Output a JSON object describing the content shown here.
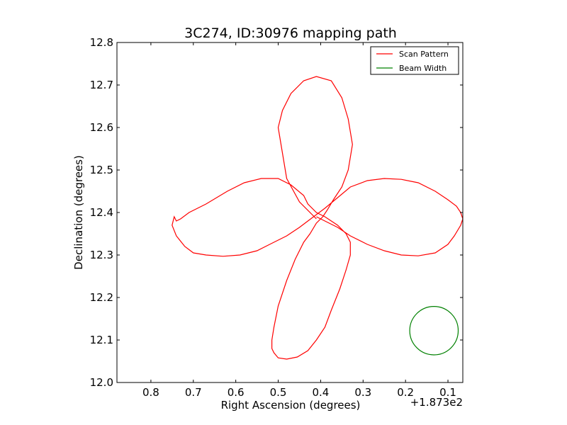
{
  "chart_data": {
    "type": "line",
    "title": "3C274, ID:30976 mapping path",
    "xlabel": "Right Ascension (degrees)",
    "ylabel": "Declination (degrees)",
    "x_offset_label": "+1.873e2",
    "x_axis_inverted": true,
    "xlim": [
      0.88,
      0.065
    ],
    "ylim": [
      12.0,
      12.8
    ],
    "x_ticks": [
      0.8,
      0.7,
      0.6,
      0.5,
      0.4,
      0.3,
      0.2,
      0.1
    ],
    "x_tick_labels": [
      "0.8",
      "0.7",
      "0.6",
      "0.5",
      "0.4",
      "0.3",
      "0.2",
      "0.1"
    ],
    "y_ticks": [
      12.0,
      12.1,
      12.2,
      12.3,
      12.4,
      12.5,
      12.6,
      12.7,
      12.8
    ],
    "y_tick_labels": [
      "12.0",
      "12.1",
      "12.2",
      "12.3",
      "12.4",
      "12.5",
      "12.6",
      "12.7",
      "12.8"
    ],
    "legend_placement": "top-right",
    "series": [
      {
        "name": "Scan Pattern",
        "color": "#ff0000",
        "x": [
          0.41,
          0.45,
          0.48,
          0.49,
          0.5,
          0.49,
          0.47,
          0.44,
          0.41,
          0.375,
          0.35,
          0.335,
          0.325,
          0.335,
          0.35,
          0.37,
          0.385,
          0.395,
          0.41,
          0.425,
          0.44,
          0.46,
          0.48,
          0.5,
          0.51,
          0.515,
          0.515,
          0.51,
          0.5,
          0.48,
          0.455,
          0.43,
          0.41,
          0.39,
          0.375,
          0.355,
          0.34,
          0.33,
          0.33,
          0.34,
          0.36,
          0.39,
          0.41,
          0.43,
          0.44,
          0.47,
          0.5,
          0.54,
          0.58,
          0.62,
          0.67,
          0.71,
          0.73,
          0.74,
          0.745,
          0.75,
          0.74,
          0.72,
          0.7,
          0.67,
          0.63,
          0.59,
          0.55,
          0.51,
          0.48,
          0.45,
          0.43,
          0.41,
          0.39,
          0.36,
          0.33,
          0.29,
          0.25,
          0.21,
          0.17,
          0.13,
          0.1,
          0.08,
          0.07,
          0.065,
          0.07,
          0.085,
          0.1,
          0.13,
          0.17,
          0.21,
          0.25,
          0.29,
          0.33,
          0.36,
          0.39,
          0.41
        ],
        "y": [
          12.385,
          12.425,
          12.48,
          12.54,
          12.6,
          12.64,
          12.68,
          12.71,
          12.72,
          12.71,
          12.67,
          12.62,
          12.56,
          12.5,
          12.46,
          12.43,
          12.405,
          12.39,
          12.375,
          12.35,
          12.33,
          12.29,
          12.24,
          12.18,
          12.13,
          12.1,
          12.08,
          12.07,
          12.058,
          12.055,
          12.06,
          12.075,
          12.1,
          12.13,
          12.17,
          12.22,
          12.265,
          12.3,
          12.33,
          12.35,
          12.37,
          12.39,
          12.4,
          12.42,
          12.44,
          12.465,
          12.48,
          12.48,
          12.47,
          12.45,
          12.42,
          12.4,
          12.385,
          12.38,
          12.39,
          12.37,
          12.345,
          12.32,
          12.305,
          12.3,
          12.297,
          12.3,
          12.31,
          12.33,
          12.345,
          12.365,
          12.38,
          12.395,
          12.41,
          12.435,
          12.46,
          12.475,
          12.48,
          12.478,
          12.47,
          12.45,
          12.43,
          12.415,
          12.4,
          12.385,
          12.37,
          12.345,
          12.325,
          12.305,
          12.298,
          12.3,
          12.31,
          12.325,
          12.345,
          12.365,
          12.38,
          12.39
        ]
      },
      {
        "name": "Beam Width",
        "color": "#008000",
        "center": [
          0.133,
          12.122
        ],
        "radius_deg": 0.057
      }
    ]
  }
}
